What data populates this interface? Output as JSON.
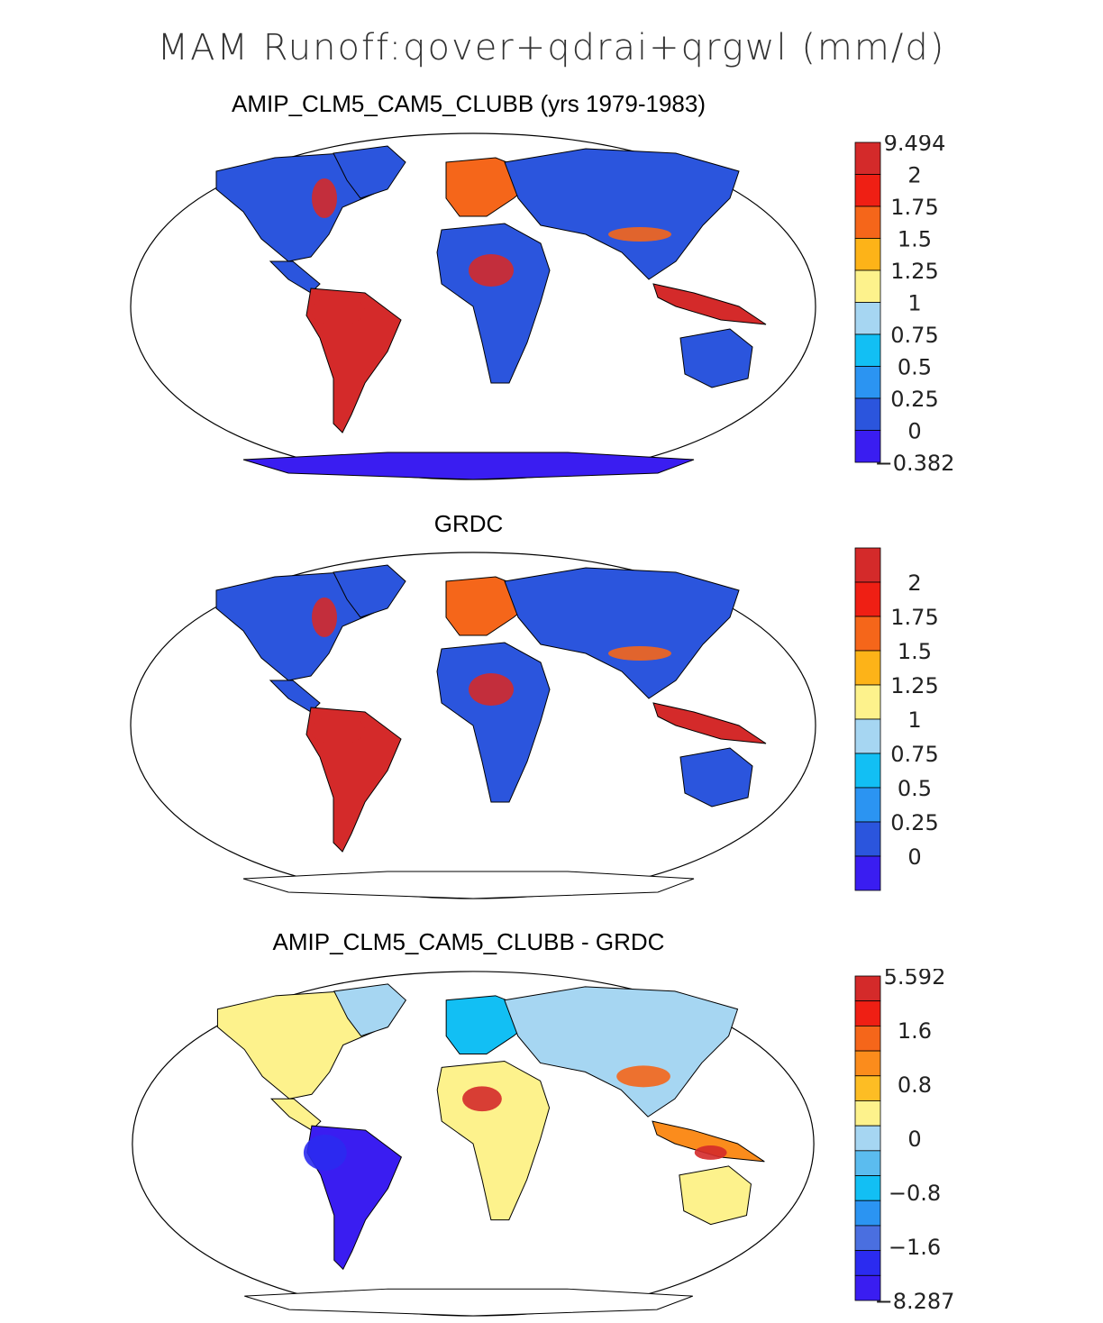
{
  "figure_title": "MAM Runoff:qover+qdrai+qrgwl (mm/d)",
  "panels": [
    {
      "title": "AMIP_CLM5_CAM5_CLUBB (yrs 1979-1983)",
      "colorbar": {
        "labels": [
          "9.494",
          "2",
          "1.75",
          "1.5",
          "1.25",
          "1",
          "0.75",
          "0.5",
          "0.25",
          "0",
          "−0.382"
        ],
        "colors": [
          "#d42a2a",
          "#ef1f14",
          "#f5661a",
          "#fdb318",
          "#fdf28c",
          "#a6d6f2",
          "#12bff4",
          "#2b94f2",
          "#2b55dd",
          "#3a1df1"
        ]
      }
    },
    {
      "title": "GRDC",
      "colorbar": {
        "labels": [
          "2",
          "1.75",
          "1.5",
          "1.25",
          "1",
          "0.75",
          "0.5",
          "0.25",
          "0"
        ],
        "colors": [
          "#d42a2a",
          "#ef1f14",
          "#f5661a",
          "#fdb318",
          "#fdf28c",
          "#a6d6f2",
          "#12bff4",
          "#2b94f2",
          "#2b55dd",
          "#3a1df1"
        ]
      }
    },
    {
      "title": "AMIP_CLM5_CAM5_CLUBB - GRDC",
      "colorbar": {
        "labels": [
          "5.592",
          "1.6",
          "0.8",
          "0",
          "−0.8",
          "−1.6",
          "−8.287"
        ],
        "colors": [
          "#d42a2a",
          "#ef1f14",
          "#f5661a",
          "#fb8c1c",
          "#fdbd24",
          "#fdf28c",
          "#a6d6f2",
          "#5bbcef",
          "#12bff4",
          "#2b94f2",
          "#4a6fe0",
          "#2b2bf0",
          "#3a1df1"
        ]
      }
    }
  ]
}
